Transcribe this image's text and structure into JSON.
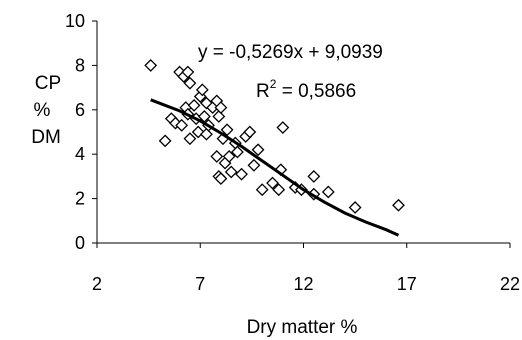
{
  "chart_data": {
    "type": "scatter",
    "title": "",
    "xlabel": "Dry matter %",
    "ylabel_lines": [
      "CP",
      "%",
      "DM"
    ],
    "xlim": [
      2,
      22
    ],
    "ylim": [
      0,
      10
    ],
    "xticks": [
      2,
      7,
      12,
      17,
      22
    ],
    "yticks": [
      0,
      2,
      4,
      6,
      8,
      10
    ],
    "xtick_labels": [
      "2",
      "7",
      "12",
      "17",
      "22"
    ],
    "ytick_labels": [
      "0",
      "2",
      "4",
      "6",
      "8",
      "10"
    ],
    "grid": false,
    "marker": "diamond-open",
    "points": [
      [
        4.6,
        8.0
      ],
      [
        5.3,
        4.6
      ],
      [
        5.6,
        5.6
      ],
      [
        5.8,
        5.4
      ],
      [
        6.0,
        7.7
      ],
      [
        6.1,
        5.3
      ],
      [
        6.2,
        7.5
      ],
      [
        6.3,
        6.1
      ],
      [
        6.4,
        7.7
      ],
      [
        6.4,
        5.8
      ],
      [
        6.5,
        7.2
      ],
      [
        6.5,
        4.7
      ],
      [
        6.7,
        6.2
      ],
      [
        6.8,
        5.6
      ],
      [
        6.9,
        5.0
      ],
      [
        7.0,
        6.6
      ],
      [
        7.1,
        6.9
      ],
      [
        7.2,
        5.7
      ],
      [
        7.3,
        6.3
      ],
      [
        7.3,
        4.9
      ],
      [
        7.4,
        5.3
      ],
      [
        7.6,
        6.1
      ],
      [
        7.8,
        6.4
      ],
      [
        7.8,
        3.9
      ],
      [
        7.9,
        3.0
      ],
      [
        7.9,
        5.7
      ],
      [
        8.0,
        2.9
      ],
      [
        8.0,
        6.1
      ],
      [
        8.1,
        4.7
      ],
      [
        8.2,
        3.6
      ],
      [
        8.3,
        5.1
      ],
      [
        8.4,
        3.9
      ],
      [
        8.5,
        3.2
      ],
      [
        8.7,
        4.5
      ],
      [
        8.8,
        4.1
      ],
      [
        9.0,
        3.1
      ],
      [
        9.2,
        4.8
      ],
      [
        9.4,
        5.0
      ],
      [
        9.6,
        3.5
      ],
      [
        9.8,
        4.2
      ],
      [
        10.0,
        2.4
      ],
      [
        10.5,
        2.7
      ],
      [
        10.8,
        2.4
      ],
      [
        10.9,
        3.3
      ],
      [
        11.0,
        5.2
      ],
      [
        11.6,
        2.5
      ],
      [
        11.9,
        2.4
      ],
      [
        12.5,
        3.0
      ],
      [
        12.5,
        2.2
      ],
      [
        13.2,
        2.3
      ],
      [
        14.5,
        1.6
      ],
      [
        16.6,
        1.7
      ]
    ],
    "trendline": {
      "type": "polynomial",
      "x_range": [
        4.6,
        16.6
      ],
      "points": [
        [
          4.6,
          6.45
        ],
        [
          6.0,
          5.95
        ],
        [
          7.0,
          5.5
        ],
        [
          8.0,
          4.95
        ],
        [
          9.0,
          4.35
        ],
        [
          10.0,
          3.7
        ],
        [
          11.0,
          3.05
        ],
        [
          12.0,
          2.4
        ],
        [
          13.0,
          1.85
        ],
        [
          14.0,
          1.35
        ],
        [
          15.0,
          0.95
        ],
        [
          16.0,
          0.6
        ],
        [
          16.6,
          0.35
        ]
      ]
    },
    "annotations": {
      "equation": "y = -0,5269x + 9,0939",
      "r2_prefix": "R",
      "r2_sup": "2",
      "r2_value": " = 0,5866"
    }
  }
}
